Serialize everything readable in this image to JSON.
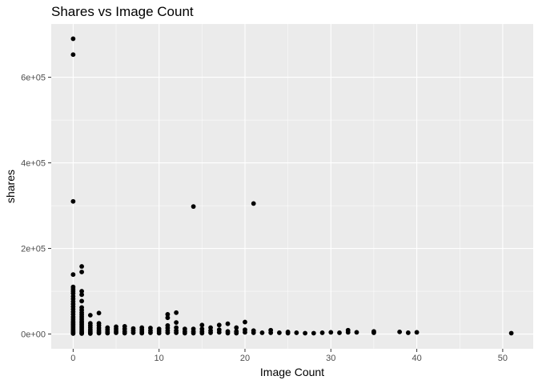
{
  "chart_data": {
    "type": "scatter",
    "title": "Shares vs Image Count",
    "xlabel": "Image Count",
    "ylabel": "shares",
    "xlim": [
      -2.55,
      53.55
    ],
    "ylim": [
      -34500,
      724500
    ],
    "x_ticks": [
      0,
      10,
      20,
      30,
      40,
      50
    ],
    "x_minor_ticks": [
      5,
      15,
      25,
      35,
      45
    ],
    "y_ticks": [
      0,
      200000,
      400000,
      600000
    ],
    "y_tick_labels": [
      "0e+00",
      "2e+05",
      "4e+05",
      "6e+05"
    ],
    "y_minor_ticks": [
      100000,
      300000,
      500000
    ],
    "grid": true,
    "panel_color": "#ebebeb",
    "point_color": "#000000",
    "points": [
      [
        0,
        690000
      ],
      [
        0,
        653000
      ],
      [
        0,
        310000
      ],
      [
        0,
        139000
      ],
      [
        0,
        110000
      ],
      [
        0,
        105000
      ],
      [
        0,
        100000
      ],
      [
        0,
        95000
      ],
      [
        0,
        88000
      ],
      [
        0,
        82000
      ],
      [
        0,
        76000
      ],
      [
        0,
        70000
      ],
      [
        0,
        64000
      ],
      [
        0,
        58000
      ],
      [
        0,
        52000
      ],
      [
        0,
        46000
      ],
      [
        0,
        40000
      ],
      [
        0,
        35000
      ],
      [
        0,
        30000
      ],
      [
        0,
        26000
      ],
      [
        0,
        22000
      ],
      [
        0,
        18000
      ],
      [
        0,
        14000
      ],
      [
        0,
        10000
      ],
      [
        0,
        6000
      ],
      [
        0,
        3000
      ],
      [
        0,
        1000
      ],
      [
        1,
        158000
      ],
      [
        1,
        145000
      ],
      [
        1,
        100000
      ],
      [
        1,
        92000
      ],
      [
        1,
        77000
      ],
      [
        1,
        62000
      ],
      [
        1,
        56000
      ],
      [
        1,
        50000
      ],
      [
        1,
        45000
      ],
      [
        1,
        40000
      ],
      [
        1,
        35000
      ],
      [
        1,
        30000
      ],
      [
        1,
        26000
      ],
      [
        1,
        22000
      ],
      [
        1,
        18000
      ],
      [
        1,
        14000
      ],
      [
        1,
        10000
      ],
      [
        1,
        6000
      ],
      [
        1,
        3000
      ],
      [
        1,
        1000
      ],
      [
        2,
        44000
      ],
      [
        2,
        25000
      ],
      [
        2,
        20000
      ],
      [
        2,
        15000
      ],
      [
        2,
        10000
      ],
      [
        2,
        6000
      ],
      [
        2,
        3000
      ],
      [
        2,
        1000
      ],
      [
        3,
        49000
      ],
      [
        3,
        25000
      ],
      [
        3,
        20000
      ],
      [
        3,
        14000
      ],
      [
        3,
        9000
      ],
      [
        3,
        5000
      ],
      [
        3,
        2000
      ],
      [
        4,
        15000
      ],
      [
        4,
        10000
      ],
      [
        4,
        5000
      ],
      [
        4,
        2000
      ],
      [
        5,
        17000
      ],
      [
        5,
        12000
      ],
      [
        5,
        7000
      ],
      [
        5,
        3000
      ],
      [
        6,
        18000
      ],
      [
        6,
        12000
      ],
      [
        6,
        6000
      ],
      [
        6,
        2000
      ],
      [
        7,
        13000
      ],
      [
        7,
        8000
      ],
      [
        7,
        3000
      ],
      [
        8,
        15000
      ],
      [
        8,
        10000
      ],
      [
        8,
        5000
      ],
      [
        8,
        2000
      ],
      [
        9,
        14000
      ],
      [
        9,
        8000
      ],
      [
        9,
        3000
      ],
      [
        10,
        12000
      ],
      [
        10,
        7000
      ],
      [
        10,
        2000
      ],
      [
        11,
        46000
      ],
      [
        11,
        38000
      ],
      [
        11,
        20000
      ],
      [
        11,
        14000
      ],
      [
        11,
        8000
      ],
      [
        11,
        3000
      ],
      [
        12,
        50000
      ],
      [
        12,
        27000
      ],
      [
        12,
        15000
      ],
      [
        12,
        8000
      ],
      [
        12,
        3000
      ],
      [
        13,
        12000
      ],
      [
        13,
        6000
      ],
      [
        13,
        2000
      ],
      [
        14,
        298000
      ],
      [
        14,
        12000
      ],
      [
        14,
        6000
      ],
      [
        14,
        2000
      ],
      [
        15,
        21000
      ],
      [
        15,
        12000
      ],
      [
        15,
        6000
      ],
      [
        15,
        2000
      ],
      [
        16,
        15000
      ],
      [
        16,
        8000
      ],
      [
        16,
        3000
      ],
      [
        17,
        21000
      ],
      [
        17,
        10000
      ],
      [
        17,
        4000
      ],
      [
        18,
        24000
      ],
      [
        18,
        6000
      ],
      [
        18,
        2000
      ],
      [
        19,
        15000
      ],
      [
        19,
        6000
      ],
      [
        19,
        2000
      ],
      [
        20,
        28000
      ],
      [
        20,
        10000
      ],
      [
        20,
        4000
      ],
      [
        21,
        305000
      ],
      [
        21,
        8000
      ],
      [
        21,
        3000
      ],
      [
        22,
        3000
      ],
      [
        23,
        9000
      ],
      [
        23,
        3000
      ],
      [
        24,
        3000
      ],
      [
        25,
        5000
      ],
      [
        25,
        2000
      ],
      [
        26,
        3000
      ],
      [
        27,
        2000
      ],
      [
        28,
        2000
      ],
      [
        29,
        3000
      ],
      [
        30,
        4000
      ],
      [
        31,
        3000
      ],
      [
        32,
        9000
      ],
      [
        32,
        4000
      ],
      [
        33,
        4000
      ],
      [
        35,
        6000
      ],
      [
        35,
        3000
      ],
      [
        38,
        5000
      ],
      [
        39,
        3000
      ],
      [
        40,
        4000
      ],
      [
        51,
        2000
      ]
    ]
  }
}
